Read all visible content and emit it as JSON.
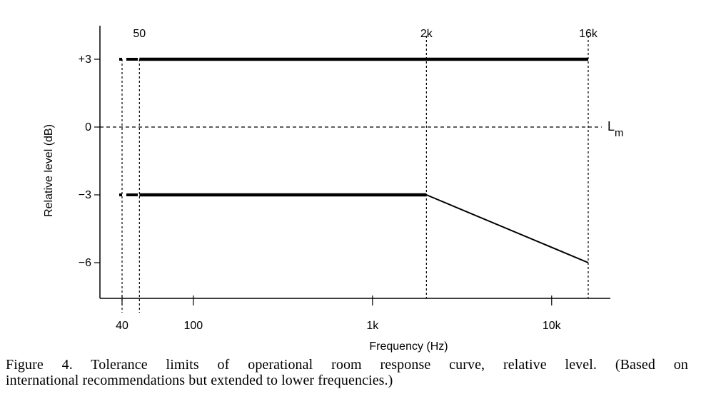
{
  "chart_data": {
    "type": "line",
    "xscale": "log",
    "xlabel": "Frequency (Hz)",
    "ylabel": "Relative level (dB)",
    "xlim": [
      30,
      30000
    ],
    "ylim": [
      -7.5,
      4.5
    ],
    "ytick_values": [
      3,
      0,
      -3,
      -6
    ],
    "ytick_labels": [
      "+3",
      "0",
      "−3",
      "−6"
    ],
    "xtick_values_bottom": [
      40,
      100,
      1000,
      10000
    ],
    "xtick_labels_bottom": [
      "40",
      "100",
      "1k",
      "10k"
    ],
    "xtick_values_top": [
      50,
      2000,
      16000
    ],
    "xtick_labels_top": [
      "50",
      "2k",
      "16k"
    ],
    "reference_line": {
      "y": 0,
      "label": "L",
      "label_sub": "m"
    },
    "vertical_guides": [
      40,
      50,
      2000,
      16000
    ],
    "series": [
      {
        "role": "upper-limit",
        "dashed_segment": {
          "x": [
            40,
            50
          ],
          "y": [
            3,
            3
          ]
        },
        "x": [
          50,
          16000
        ],
        "y": [
          3,
          3
        ]
      },
      {
        "role": "lower-limit",
        "dashed_segment": {
          "x": [
            40,
            50
          ],
          "y": [
            -3,
            -3
          ]
        },
        "x": [
          50,
          2000,
          16000
        ],
        "y": [
          -3,
          -3,
          -6
        ]
      }
    ]
  },
  "caption": {
    "line1": "Figure 4. Tolerance limits of operational room response curve, relative level. (Based on",
    "line2": "international recommendations but extended to lower frequencies.)"
  }
}
